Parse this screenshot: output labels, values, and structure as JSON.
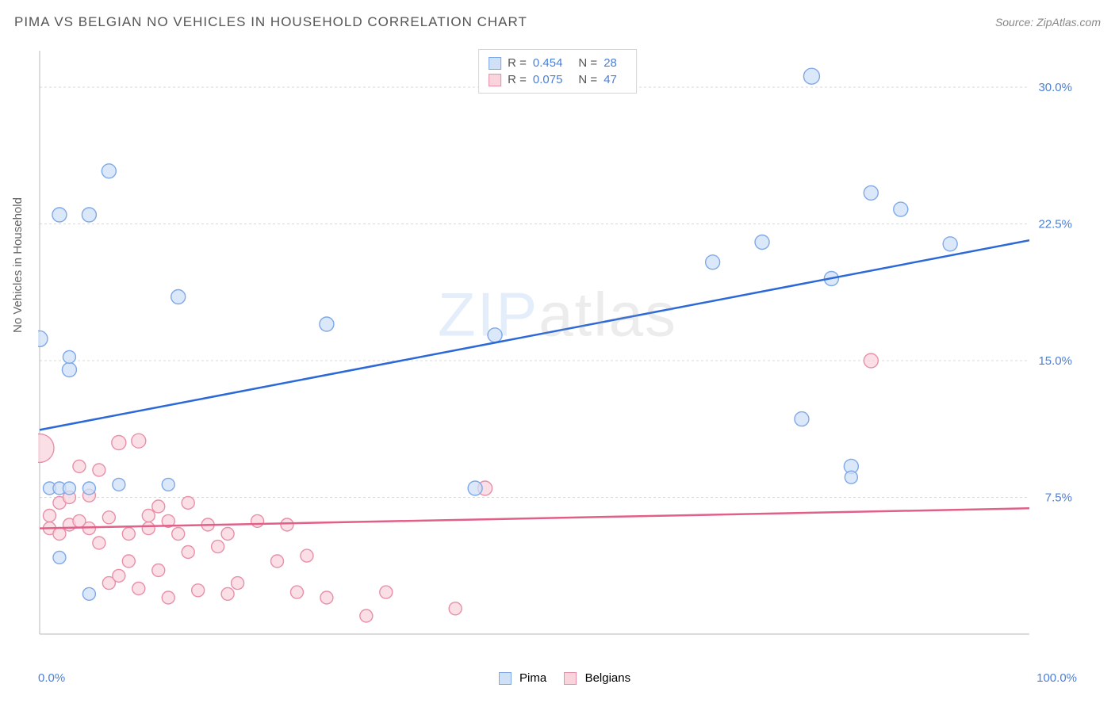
{
  "title": "PIMA VS BELGIAN NO VEHICLES IN HOUSEHOLD CORRELATION CHART",
  "source": "Source: ZipAtlas.com",
  "ylabel": "No Vehicles in Household",
  "watermark": {
    "zip": "ZIP",
    "atlas": "atlas"
  },
  "chart": {
    "type": "scatter_with_trend",
    "x_domain": [
      0,
      100
    ],
    "y_domain": [
      0,
      32
    ],
    "x_tick_labels": {
      "min": "0.0%",
      "max": "100.0%"
    },
    "y_ticks": [
      7.5,
      15.0,
      22.5,
      30.0
    ],
    "y_tick_labels": [
      "7.5%",
      "15.0%",
      "22.5%",
      "30.0%"
    ],
    "grid_color": "#d8d8d8",
    "axis_color": "#b8b8b8",
    "tick_label_color": "#4a7fd8",
    "series": [
      {
        "name": "Pima",
        "fill": "#cfe0f7",
        "stroke": "#7fa8e8",
        "line_stroke": "#2b68d8",
        "R": "0.454",
        "N": "28",
        "trend": {
          "x1": 0,
          "y1": 11.2,
          "x2": 100,
          "y2": 21.6
        },
        "points": [
          {
            "x": 0,
            "y": 16.2,
            "r": 10
          },
          {
            "x": 2,
            "y": 23.0,
            "r": 9
          },
          {
            "x": 5,
            "y": 23.0,
            "r": 9
          },
          {
            "x": 7,
            "y": 25.4,
            "r": 9
          },
          {
            "x": 3,
            "y": 14.5,
            "r": 9
          },
          {
            "x": 3,
            "y": 15.2,
            "r": 8
          },
          {
            "x": 1,
            "y": 8.0,
            "r": 8
          },
          {
            "x": 2,
            "y": 8.0,
            "r": 8
          },
          {
            "x": 3,
            "y": 8.0,
            "r": 8
          },
          {
            "x": 5,
            "y": 8.0,
            "r": 8
          },
          {
            "x": 8,
            "y": 8.2,
            "r": 8
          },
          {
            "x": 13,
            "y": 8.2,
            "r": 8
          },
          {
            "x": 2,
            "y": 4.2,
            "r": 8
          },
          {
            "x": 5,
            "y": 2.2,
            "r": 8
          },
          {
            "x": 14,
            "y": 18.5,
            "r": 9
          },
          {
            "x": 29,
            "y": 17.0,
            "r": 9
          },
          {
            "x": 46,
            "y": 16.4,
            "r": 9
          },
          {
            "x": 44,
            "y": 8.0,
            "r": 9
          },
          {
            "x": 68,
            "y": 20.4,
            "r": 9
          },
          {
            "x": 73,
            "y": 21.5,
            "r": 9
          },
          {
            "x": 78,
            "y": 30.6,
            "r": 10
          },
          {
            "x": 80,
            "y": 19.5,
            "r": 9
          },
          {
            "x": 77,
            "y": 11.8,
            "r": 9
          },
          {
            "x": 82,
            "y": 9.2,
            "r": 9
          },
          {
            "x": 82,
            "y": 8.6,
            "r": 8
          },
          {
            "x": 84,
            "y": 24.2,
            "r": 9
          },
          {
            "x": 87,
            "y": 23.3,
            "r": 9
          },
          {
            "x": 92,
            "y": 21.4,
            "r": 9
          }
        ]
      },
      {
        "name": "Belgians",
        "fill": "#f9d4dd",
        "stroke": "#e890a8",
        "line_stroke": "#e06088",
        "R": "0.075",
        "N": "47",
        "trend": {
          "x1": 0,
          "y1": 5.8,
          "x2": 100,
          "y2": 6.9
        },
        "points": [
          {
            "x": 0,
            "y": 10.2,
            "r": 18
          },
          {
            "x": 1,
            "y": 6.5,
            "r": 8
          },
          {
            "x": 1,
            "y": 5.8,
            "r": 8
          },
          {
            "x": 2,
            "y": 7.2,
            "r": 8
          },
          {
            "x": 2,
            "y": 5.5,
            "r": 8
          },
          {
            "x": 3,
            "y": 6.0,
            "r": 8
          },
          {
            "x": 3,
            "y": 7.5,
            "r": 8
          },
          {
            "x": 4,
            "y": 9.2,
            "r": 8
          },
          {
            "x": 4,
            "y": 6.2,
            "r": 8
          },
          {
            "x": 5,
            "y": 5.8,
            "r": 8
          },
          {
            "x": 5,
            "y": 7.6,
            "r": 8
          },
          {
            "x": 6,
            "y": 9.0,
            "r": 8
          },
          {
            "x": 6,
            "y": 5.0,
            "r": 8
          },
          {
            "x": 7,
            "y": 6.4,
            "r": 8
          },
          {
            "x": 7,
            "y": 2.8,
            "r": 8
          },
          {
            "x": 8,
            "y": 3.2,
            "r": 8
          },
          {
            "x": 8,
            "y": 10.5,
            "r": 9
          },
          {
            "x": 9,
            "y": 5.5,
            "r": 8
          },
          {
            "x": 9,
            "y": 4.0,
            "r": 8
          },
          {
            "x": 10,
            "y": 10.6,
            "r": 9
          },
          {
            "x": 10,
            "y": 2.5,
            "r": 8
          },
          {
            "x": 11,
            "y": 6.5,
            "r": 8
          },
          {
            "x": 11,
            "y": 5.8,
            "r": 8
          },
          {
            "x": 12,
            "y": 7.0,
            "r": 8
          },
          {
            "x": 12,
            "y": 3.5,
            "r": 8
          },
          {
            "x": 13,
            "y": 6.2,
            "r": 8
          },
          {
            "x": 13,
            "y": 2.0,
            "r": 8
          },
          {
            "x": 14,
            "y": 5.5,
            "r": 8
          },
          {
            "x": 15,
            "y": 7.2,
            "r": 8
          },
          {
            "x": 15,
            "y": 4.5,
            "r": 8
          },
          {
            "x": 16,
            "y": 2.4,
            "r": 8
          },
          {
            "x": 17,
            "y": 6.0,
            "r": 8
          },
          {
            "x": 18,
            "y": 4.8,
            "r": 8
          },
          {
            "x": 19,
            "y": 2.2,
            "r": 8
          },
          {
            "x": 19,
            "y": 5.5,
            "r": 8
          },
          {
            "x": 20,
            "y": 2.8,
            "r": 8
          },
          {
            "x": 22,
            "y": 6.2,
            "r": 8
          },
          {
            "x": 24,
            "y": 4.0,
            "r": 8
          },
          {
            "x": 25,
            "y": 6.0,
            "r": 8
          },
          {
            "x": 26,
            "y": 2.3,
            "r": 8
          },
          {
            "x": 27,
            "y": 4.3,
            "r": 8
          },
          {
            "x": 29,
            "y": 2.0,
            "r": 8
          },
          {
            "x": 33,
            "y": 1.0,
            "r": 8
          },
          {
            "x": 35,
            "y": 2.3,
            "r": 8
          },
          {
            "x": 42,
            "y": 1.4,
            "r": 8
          },
          {
            "x": 45,
            "y": 8.0,
            "r": 9
          },
          {
            "x": 84,
            "y": 15.0,
            "r": 9
          }
        ]
      }
    ]
  }
}
